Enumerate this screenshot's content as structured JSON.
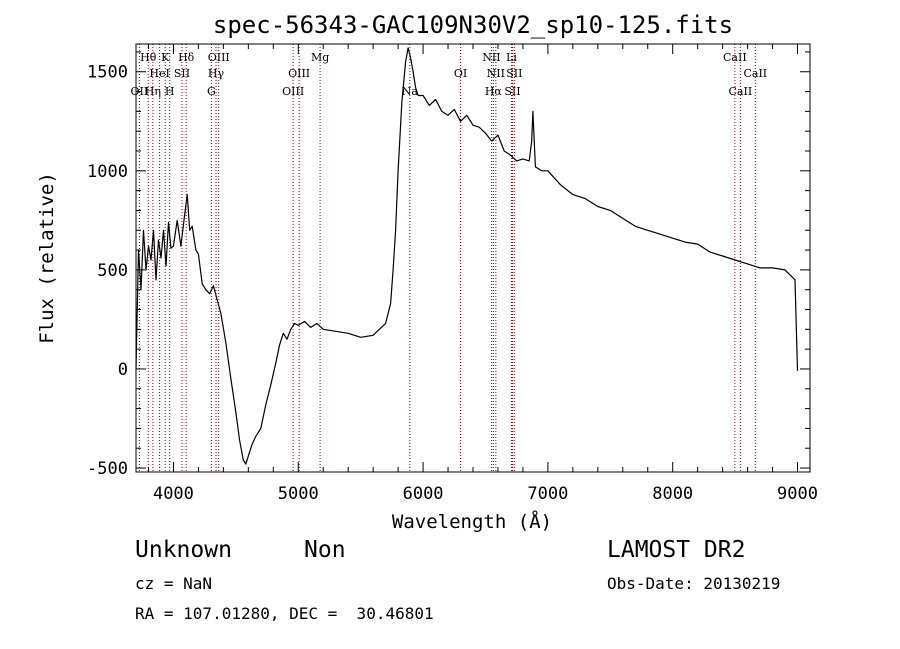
{
  "chart_data": {
    "type": "line",
    "title": "spec-56343-GAC109N30V2_sp10-125.fits",
    "xlabel": "Wavelength (Å)",
    "ylabel": "Flux (relative)",
    "xlim": [
      3700,
      9100
    ],
    "ylim": [
      -520,
      1640
    ],
    "xticks": [
      4000,
      5000,
      6000,
      7000,
      8000,
      9000
    ],
    "xtick_labels": [
      "4000",
      "5000",
      "6000",
      "7000",
      "8000",
      "9000"
    ],
    "yticks": [
      -500,
      0,
      500,
      1000,
      1500
    ],
    "ytick_labels": [
      "-500",
      "0",
      "500",
      "1000",
      "1500"
    ],
    "grid": false,
    "line_color": "#000000",
    "marker_color": "#8b0000",
    "series": [
      {
        "x": [
          3700,
          3720,
          3740,
          3760,
          3780,
          3800,
          3820,
          3840,
          3860,
          3880,
          3900,
          3920,
          3940,
          3960,
          3980,
          4000,
          4030,
          4060,
          4090,
          4110,
          4130,
          4150,
          4180,
          4200,
          4230,
          4260,
          4290,
          4320,
          4350,
          4380,
          4420,
          4460,
          4500,
          4530,
          4560,
          4580,
          4600,
          4630,
          4660,
          4700,
          4740,
          4780,
          4820,
          4850,
          4880,
          4910,
          4940,
          4970,
          5000,
          5050,
          5100,
          5150,
          5200,
          5300,
          5400,
          5500,
          5600,
          5650,
          5700,
          5740,
          5760,
          5780,
          5800,
          5830,
          5860,
          5880,
          5900,
          5920,
          5940,
          5960,
          6000,
          6050,
          6100,
          6150,
          6200,
          6250,
          6300,
          6350,
          6400,
          6450,
          6500,
          6550,
          6600,
          6650,
          6700,
          6750,
          6800,
          6850,
          6870,
          6880,
          6900,
          6950,
          7000,
          7100,
          7200,
          7300,
          7400,
          7500,
          7600,
          7700,
          7800,
          7900,
          8000,
          8100,
          8200,
          8300,
          8400,
          8500,
          8600,
          8700,
          8800,
          8900,
          8980,
          9000
        ],
        "y": [
          0,
          600,
          400,
          700,
          500,
          620,
          550,
          700,
          450,
          650,
          560,
          700,
          520,
          740,
          610,
          620,
          750,
          620,
          780,
          880,
          700,
          720,
          600,
          580,
          430,
          400,
          380,
          420,
          350,
          280,
          130,
          -50,
          -220,
          -360,
          -460,
          -480,
          -440,
          -380,
          -340,
          -300,
          -180,
          -80,
          30,
          120,
          180,
          150,
          200,
          230,
          220,
          240,
          210,
          230,
          200,
          190,
          180,
          160,
          170,
          200,
          230,
          330,
          500,
          700,
          1000,
          1350,
          1550,
          1620,
          1570,
          1500,
          1420,
          1380,
          1380,
          1330,
          1360,
          1300,
          1280,
          1310,
          1250,
          1280,
          1230,
          1220,
          1190,
          1150,
          1180,
          1100,
          1080,
          1050,
          1060,
          1050,
          1150,
          1300,
          1020,
          1000,
          1000,
          930,
          880,
          860,
          820,
          800,
          760,
          720,
          700,
          680,
          660,
          640,
          630,
          590,
          570,
          550,
          530,
          510,
          510,
          500,
          450,
          -10
        ]
      }
    ],
    "line_markers": [
      {
        "wavelength": 3727,
        "label": "OII",
        "row": 2
      },
      {
        "wavelength": 3798,
        "label": "Hθ",
        "row": 0
      },
      {
        "wavelength": 3835,
        "label": "Hη",
        "row": 2
      },
      {
        "wavelength": 3889,
        "label": "HeI",
        "row": 1
      },
      {
        "wavelength": 3934,
        "label": "K",
        "row": 0
      },
      {
        "wavelength": 3970,
        "label": "H",
        "row": 2
      },
      {
        "wavelength": 4068,
        "label": "SII",
        "row": 1
      },
      {
        "wavelength": 4102,
        "label": "Hδ",
        "row": 0
      },
      {
        "wavelength": 4304,
        "label": "G",
        "row": 2
      },
      {
        "wavelength": 4341,
        "label": "Hγ",
        "row": 1
      },
      {
        "wavelength": 4363,
        "label": "OIII",
        "row": 0
      },
      {
        "wavelength": 4959,
        "label": "OIII",
        "row": 2
      },
      {
        "wavelength": 5007,
        "label": "OIII",
        "row": 1
      },
      {
        "wavelength": 5175,
        "label": "Mg",
        "row": 0
      },
      {
        "wavelength": 5894,
        "label": "Na",
        "row": 2
      },
      {
        "wavelength": 6300,
        "label": "OI",
        "row": 1
      },
      {
        "wavelength": 6548,
        "label": "NII",
        "row": 0
      },
      {
        "wavelength": 6563,
        "label": "Hα",
        "row": 2
      },
      {
        "wavelength": 6583,
        "label": "NII",
        "row": 1
      },
      {
        "wavelength": 6708,
        "label": "Li",
        "row": 0
      },
      {
        "wavelength": 6716,
        "label": "SII",
        "row": 2
      },
      {
        "wavelength": 6731,
        "label": "SII",
        "row": 1
      },
      {
        "wavelength": 8498,
        "label": "CaII",
        "row": 0
      },
      {
        "wavelength": 8542,
        "label": "CaII",
        "row": 2
      },
      {
        "wavelength": 8662,
        "label": "CaII",
        "row": 1
      }
    ]
  },
  "info": {
    "object_class": "Unknown",
    "subclass": "Non",
    "survey": "LAMOST DR2",
    "redshift": "cz = NaN",
    "obs_date": "Obs-Date: 20130219",
    "coords": "RA = 107.01280, DEC =  30.46801"
  }
}
